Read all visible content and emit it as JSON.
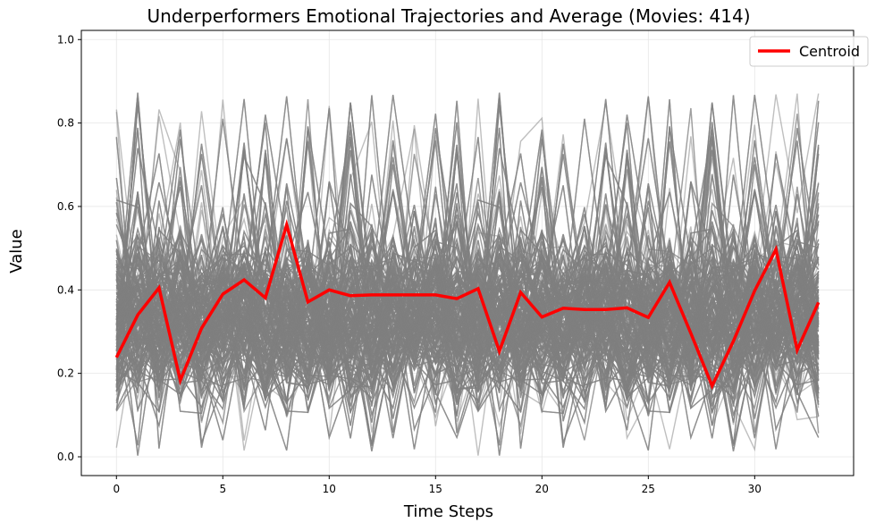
{
  "chart_data": {
    "type": "line",
    "title": "Underperformers Emotional Trajectories and Average (Movies: 414)",
    "xlabel": "Time Steps",
    "ylabel": "Value",
    "xlim": [
      -1.65,
      34.65
    ],
    "ylim": [
      -0.045,
      1.022
    ],
    "x": [
      0,
      1,
      2,
      3,
      4,
      5,
      6,
      7,
      8,
      9,
      10,
      11,
      12,
      13,
      14,
      15,
      16,
      17,
      18,
      19,
      20,
      21,
      22,
      23,
      24,
      25,
      26,
      27,
      28,
      29,
      30,
      31,
      32,
      33
    ],
    "x_ticks": [
      0,
      5,
      10,
      15,
      20,
      25,
      30
    ],
    "y_ticks": [
      0.0,
      0.2,
      0.4,
      0.6,
      0.8,
      1.0
    ],
    "x_tick_labels": [
      "0",
      "5",
      "10",
      "15",
      "20",
      "25",
      "30"
    ],
    "y_tick_labels": [
      "0.0",
      "0.2",
      "0.4",
      "0.6",
      "0.8",
      "1.0"
    ],
    "grid": true,
    "legend": {
      "placement": "top-right",
      "entries": [
        "Centroid"
      ]
    },
    "individual_trajectories": {
      "count": 414,
      "color": "#808080",
      "opacity": 0.5,
      "typical_range": [
        0.0,
        0.96
      ]
    },
    "series": [
      {
        "name": "Centroid",
        "color": "#ff0000",
        "values": [
          0.238,
          0.34,
          0.405,
          0.183,
          0.308,
          0.39,
          0.424,
          0.381,
          0.556,
          0.371,
          0.4,
          0.386,
          0.388,
          0.388,
          0.388,
          0.388,
          0.379,
          0.403,
          0.253,
          0.394,
          0.335,
          0.356,
          0.353,
          0.353,
          0.357,
          0.334,
          0.418,
          0.296,
          0.17,
          0.277,
          0.398,
          0.497,
          0.256,
          0.37
        ]
      }
    ]
  }
}
